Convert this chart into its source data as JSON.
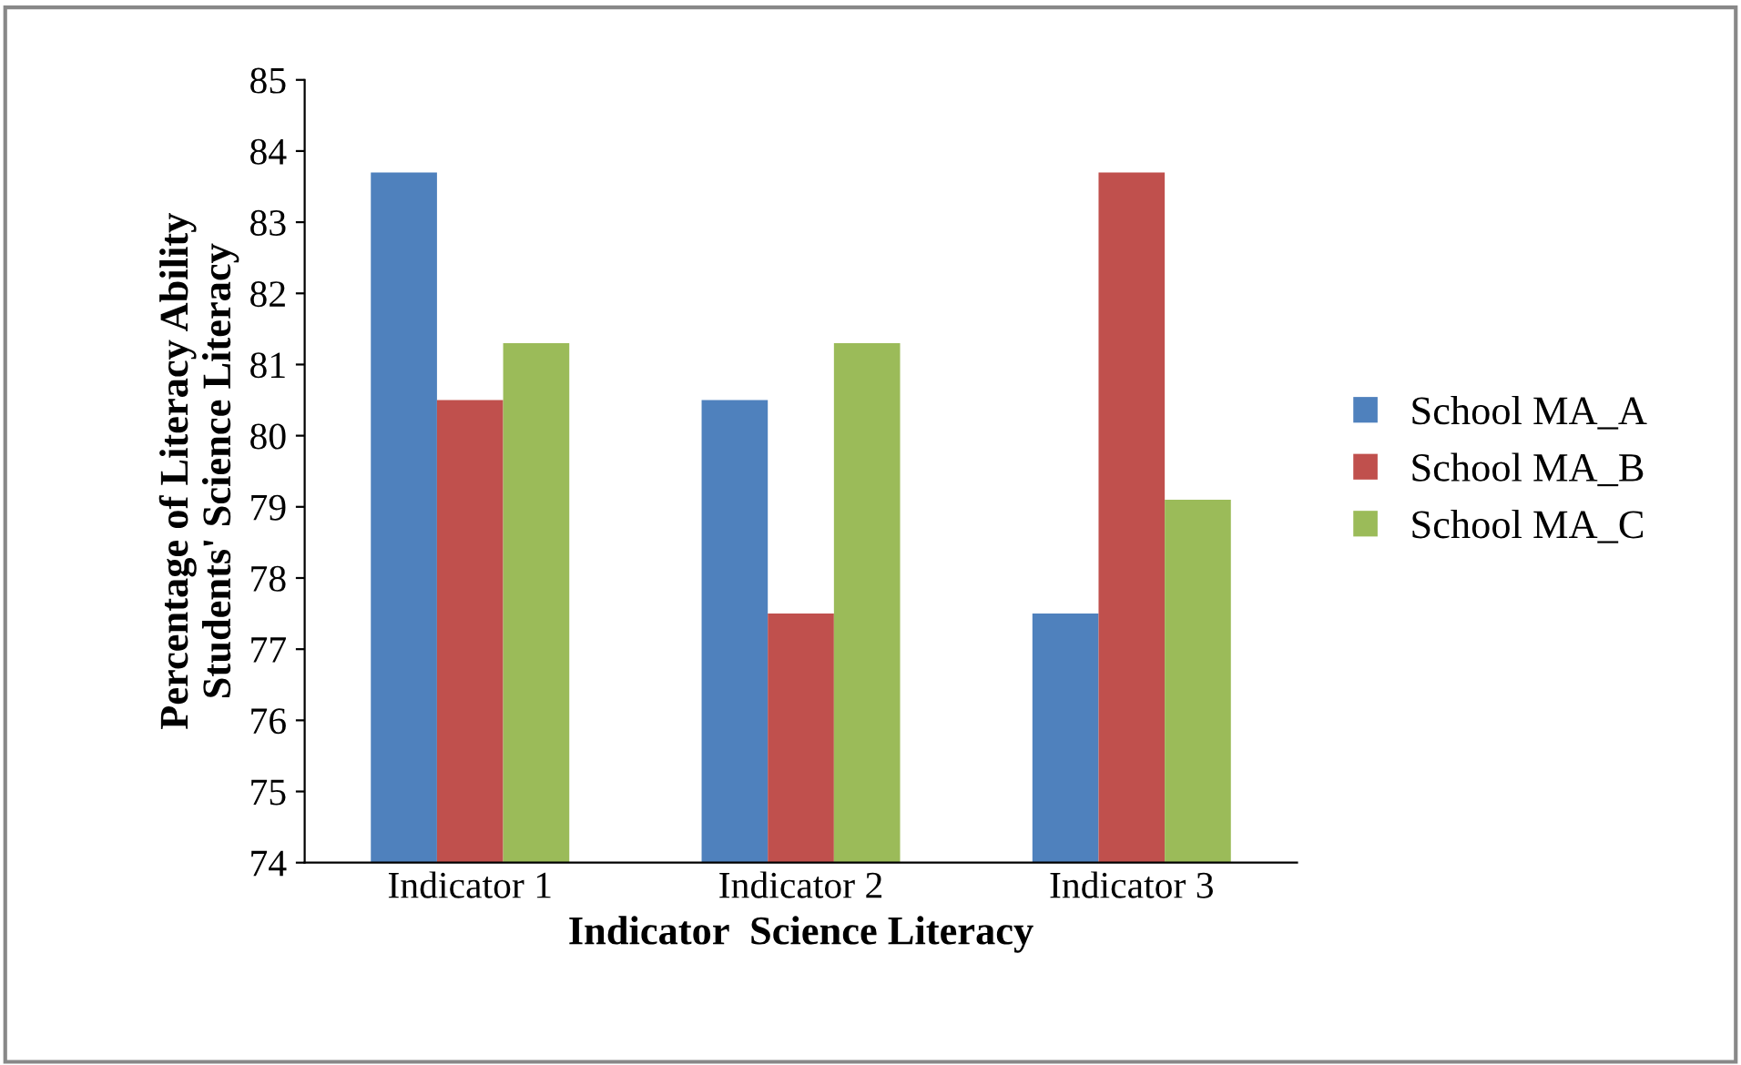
{
  "chart_data": {
    "type": "bar",
    "xlabel": "Indicator  Science Literacy",
    "ylabel": "Percentage of Literacy Ability\nStudents' Science Literacy",
    "categories": [
      "Indicator 1",
      "Indicator 2",
      "Indicator 3"
    ],
    "series": [
      {
        "name": "School MA_A",
        "color": "#4f81bd",
        "values": [
          83.7,
          80.5,
          77.5
        ]
      },
      {
        "name": "School MA_B",
        "color": "#c0504d",
        "values": [
          80.5,
          77.5,
          83.7
        ]
      },
      {
        "name": "School MA_C",
        "color": "#9bbb59",
        "values": [
          81.3,
          81.3,
          79.1
        ]
      }
    ],
    "ylim": [
      74,
      85
    ],
    "yticks": [
      74,
      75,
      76,
      77,
      78,
      79,
      80,
      81,
      82,
      83,
      84,
      85
    ],
    "grid": false,
    "legend": "right"
  }
}
